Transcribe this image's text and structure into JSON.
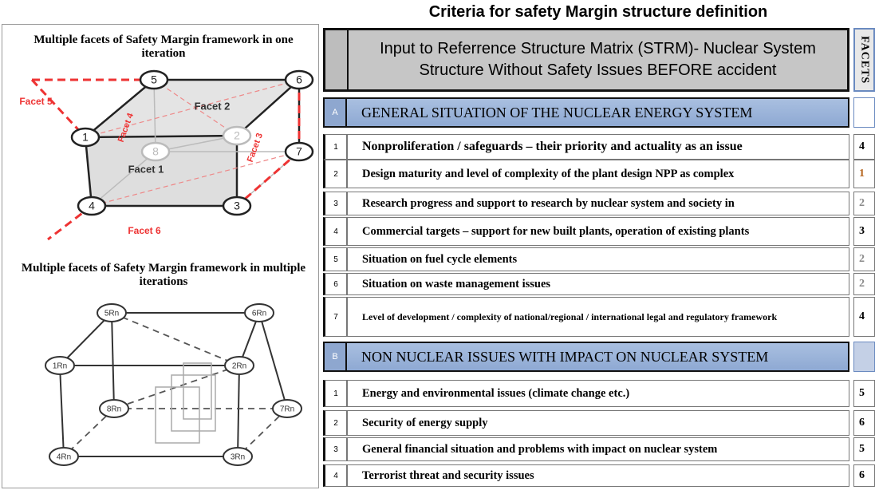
{
  "title": "Criteria for safety Margin structure definition",
  "single_iteration": {
    "caption": "Multiple facets of Safety Margin framework in one iteration",
    "nodes": [
      "5",
      "6",
      "1",
      "2",
      "8",
      "7",
      "4",
      "3"
    ],
    "facets": [
      "Facet 5",
      "Facet 2",
      "Facet 4",
      "Facet 3",
      "Facet 1",
      "Facet 6"
    ]
  },
  "multiple_iterations": {
    "caption": "Multiple facets of Safety Margin framework in multiple iterations",
    "nodes": [
      "5Rn",
      "6Rn",
      "1Rn",
      "2Rn",
      "8Rn",
      "7Rn",
      "4Rn",
      "3Rn"
    ]
  },
  "table": {
    "header": "Input to Referrence Structure Matrix (STRM)- Nuclear System Structure Without Safety Issues BEFORE accident",
    "facets_header": "FACETS",
    "sections": [
      {
        "letter": "A",
        "title": "GENERAL SITUATION OF THE NUCLEAR ENERGY SYSTEM",
        "rows": [
          {
            "number": "1",
            "text": "Nonproliferation  / safeguards – their priority  and actuality as an issue",
            "facet": "4"
          },
          {
            "number": "2",
            "text": "Design maturity and level of complexity of the plant design NPP as complex",
            "facet": "1"
          },
          {
            "number": "3",
            "text": "Research progress and support to research by nuclear system and society in",
            "facet": "2"
          },
          {
            "number": "4",
            "text": "Commercial targets – support for new built plants, operation of existing plants",
            "facet": "3"
          },
          {
            "number": "5",
            "text": "Situation on fuel cycle elements",
            "facet": "2"
          },
          {
            "number": "6",
            "text": "Situation on waste management issues",
            "facet": "2"
          },
          {
            "number": "7",
            "text": "Level of development / complexity of national/regional / international legal and regulatory framework",
            "facet": "4"
          }
        ]
      },
      {
        "letter": "B",
        "title": "NON NUCLEAR ISSUES WITH IMPACT ON NUCLEAR SYSTEM",
        "rows": [
          {
            "number": "1",
            "text": "Energy and environmental issues (climate change etc.)",
            "facet": "5"
          },
          {
            "number": "2",
            "text": "Security of energy supply",
            "facet": "6"
          },
          {
            "number": "3",
            "text": "General financial situation and problems with impact on nuclear system",
            "facet": "5"
          },
          {
            "number": "4",
            "text": "Terrorist threat and security issues",
            "facet": "6"
          }
        ]
      }
    ]
  }
}
